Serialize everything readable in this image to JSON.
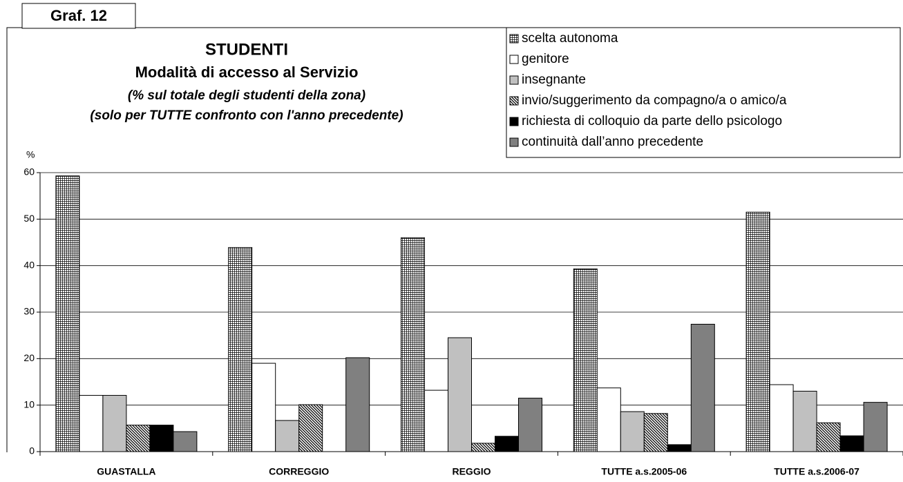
{
  "label": "Graf. 12",
  "chart_data": {
    "type": "bar",
    "title": "STUDENTI",
    "subtitle": "Modalità di accesso al Servizio",
    "notes": [
      "(% sul totale degli studenti della zona)",
      "(solo per TUTTE confronto con l'anno precedente)"
    ],
    "y_label": "%",
    "categories": [
      "GUASTALLA",
      "CORREGGIO",
      "REGGIO",
      "TUTTE a.s.2005-06",
      "TUTTE a.s.2006-07"
    ],
    "series": [
      {
        "name": "scelta autonoma",
        "color": "#000000",
        "pattern": "grid",
        "values": [
          59.3,
          43.9,
          46,
          39.3,
          51.5
        ]
      },
      {
        "name": "genitore",
        "color": "#ffffff",
        "values": [
          12.1,
          19,
          13.2,
          13.7,
          14.4
        ]
      },
      {
        "name": "insegnante",
        "color": "#c0c0c0",
        "values": [
          12.1,
          6.7,
          24.5,
          8.6,
          13
        ]
      },
      {
        "name": "invio/suggerimento da compagno/a o amico/a",
        "color": "#000000",
        "pattern": "hatch",
        "values": [
          5.7,
          10.1,
          1.8,
          8.2,
          6.2
        ]
      },
      {
        "name": "richiesta di colloquio da parte dello psicologo",
        "color": "#000000",
        "values": [
          5.7,
          0,
          3.3,
          1.5,
          3.4
        ]
      },
      {
        "name": "continuità dall’anno precedente",
        "color": "#808080",
        "values": [
          4.3,
          20.2,
          11.5,
          27.4,
          10.6
        ]
      }
    ],
    "ylim": [
      0,
      60
    ],
    "yticks": [
      0,
      10,
      20,
      30,
      40,
      50,
      60
    ],
    "legend": "upper right"
  }
}
